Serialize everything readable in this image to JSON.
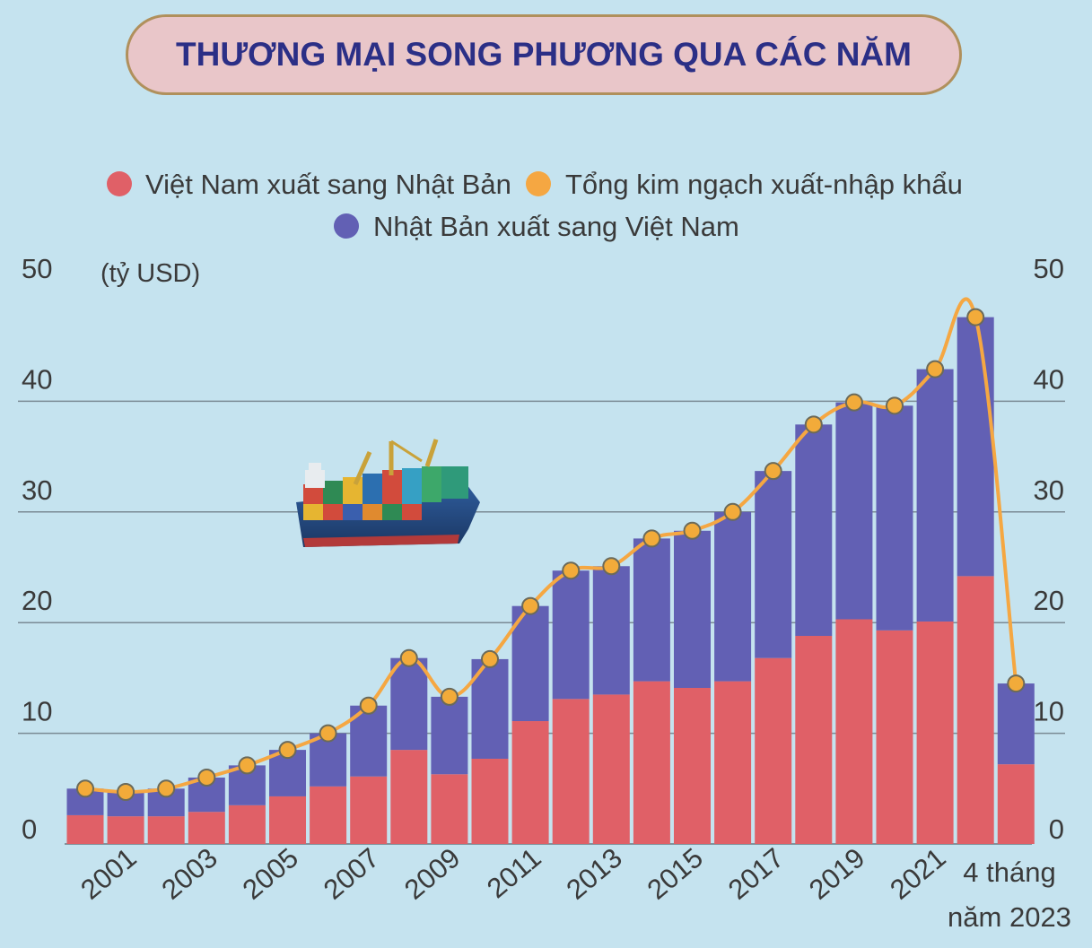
{
  "header": {
    "title": "THƯƠNG MẠI SONG PHƯƠNG QUA CÁC NĂM"
  },
  "chart_data": {
    "type": "bar",
    "stacked": true,
    "unit_label": "(tỷ USD)",
    "ylim": [
      0,
      50
    ],
    "yticks": [
      0,
      10,
      20,
      30,
      40,
      50
    ],
    "grid": true,
    "legend": {
      "placement": "top-center",
      "items": [
        {
          "label": "Việt Nam xuất sang Nhật Bản",
          "color": "#e06067"
        },
        {
          "label": "Tổng kim ngạch xuất-nhập khẩu",
          "color": "#f5a742"
        },
        {
          "label": "Nhật Bản xuất sang Việt Nam",
          "color": "#6260b4"
        }
      ]
    },
    "categories": [
      "2000",
      "2001",
      "2002",
      "2003",
      "2004",
      "2005",
      "2006",
      "2007",
      "2008",
      "2009",
      "2010",
      "2011",
      "2012",
      "2013",
      "2014",
      "2015",
      "2016",
      "2017",
      "2018",
      "2019",
      "2020",
      "2021",
      "2022",
      "4 tháng năm 2023"
    ],
    "x_tick_labels": [
      {
        "index": 1,
        "label": "2001"
      },
      {
        "index": 3,
        "label": "2003"
      },
      {
        "index": 5,
        "label": "2005"
      },
      {
        "index": 7,
        "label": "2007"
      },
      {
        "index": 9,
        "label": "2009"
      },
      {
        "index": 11,
        "label": "2011"
      },
      {
        "index": 13,
        "label": "2013"
      },
      {
        "index": 15,
        "label": "2015"
      },
      {
        "index": 17,
        "label": "2017"
      },
      {
        "index": 19,
        "label": "2019"
      },
      {
        "index": 21,
        "label": "2021"
      }
    ],
    "last_label_lines": [
      "4 tháng",
      "năm 2023"
    ],
    "series": [
      {
        "name": "Việt Nam xuất sang Nhật Bản",
        "color": "#e06067",
        "values": [
          2.6,
          2.5,
          2.5,
          2.9,
          3.5,
          4.3,
          5.2,
          6.1,
          8.5,
          6.3,
          7.7,
          11.1,
          13.1,
          13.5,
          14.7,
          14.1,
          14.7,
          16.8,
          18.8,
          20.3,
          19.3,
          20.1,
          24.2,
          7.2
        ]
      },
      {
        "name": "Nhật Bản xuất sang Việt Nam",
        "color": "#6260b4",
        "values": [
          2.4,
          2.2,
          2.5,
          3.1,
          3.6,
          4.2,
          4.8,
          6.4,
          8.3,
          7.0,
          9.0,
          10.4,
          11.6,
          11.6,
          12.9,
          14.2,
          15.3,
          16.9,
          19.1,
          19.6,
          20.3,
          22.8,
          23.4,
          7.3
        ]
      },
      {
        "name": "Tổng kim ngạch xuất-nhập khẩu",
        "type": "line",
        "color": "#f5a742",
        "values": [
          5.0,
          4.7,
          5.0,
          6.0,
          7.1,
          8.5,
          10.0,
          12.5,
          16.8,
          13.3,
          16.7,
          21.5,
          24.7,
          25.1,
          27.6,
          28.3,
          30.0,
          33.7,
          37.9,
          39.9,
          39.6,
          42.9,
          47.6,
          14.5
        ]
      }
    ]
  }
}
